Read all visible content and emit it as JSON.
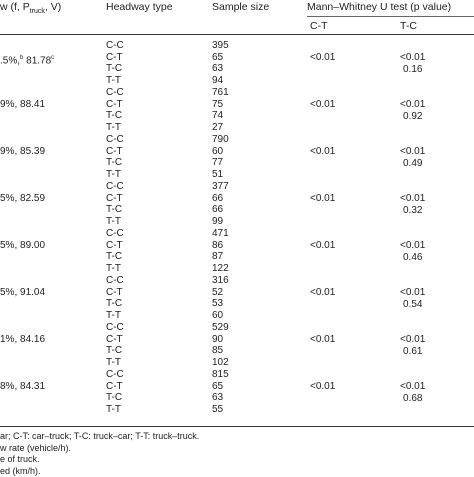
{
  "header": {
    "flow_label": "w (f, P",
    "flow_sub": "truck",
    "flow_tail": ", V)",
    "headway_type": "Headway type",
    "sample_size": "Sample size",
    "mw_test": "Mann–Whitney U test (p value)",
    "ct": "C-T",
    "tc": "T-C"
  },
  "groups": [
    {
      "flow_pre": ".5%,",
      "flow_sup1": "b",
      "flow_mid": " 81.78",
      "flow_sup2": "c",
      "rows": [
        {
          "type": "C-C",
          "n": "395"
        },
        {
          "type": "C-T",
          "n": "65"
        },
        {
          "type": "T-C",
          "n": "63"
        },
        {
          "type": "T-T",
          "n": "94"
        }
      ],
      "p_ct": "<0.01",
      "p_tc": "<0.01",
      "p_tc2": "0.16"
    },
    {
      "flow_pre": "9%, 88.41",
      "flow_sup1": "",
      "flow_mid": "",
      "flow_sup2": "",
      "rows": [
        {
          "type": "C-C",
          "n": "761"
        },
        {
          "type": "C-T",
          "n": "75"
        },
        {
          "type": "T-C",
          "n": "74"
        },
        {
          "type": "T-T",
          "n": "27"
        }
      ],
      "p_ct": "<0.01",
      "p_tc": "<0.01",
      "p_tc2": "0.92"
    },
    {
      "flow_pre": "9%, 85.39",
      "flow_sup1": "",
      "flow_mid": "",
      "flow_sup2": "",
      "rows": [
        {
          "type": "C-C",
          "n": "790"
        },
        {
          "type": "C-T",
          "n": "60"
        },
        {
          "type": "T-C",
          "n": "77"
        },
        {
          "type": "T-T",
          "n": "51"
        }
      ],
      "p_ct": "<0.01",
      "p_tc": "<0.01",
      "p_tc2": "0.49"
    },
    {
      "flow_pre": "5%, 82.59",
      "flow_sup1": "",
      "flow_mid": "",
      "flow_sup2": "",
      "rows": [
        {
          "type": "C-C",
          "n": "377"
        },
        {
          "type": "C-T",
          "n": "66"
        },
        {
          "type": "T-C",
          "n": "66"
        },
        {
          "type": "T-T",
          "n": "99"
        }
      ],
      "p_ct": "<0.01",
      "p_tc": "<0.01",
      "p_tc2": "0.32"
    },
    {
      "flow_pre": "5%, 89.00",
      "flow_sup1": "",
      "flow_mid": "",
      "flow_sup2": "",
      "rows": [
        {
          "type": "C-C",
          "n": "471"
        },
        {
          "type": "C-T",
          "n": "86"
        },
        {
          "type": "T-C",
          "n": "87"
        },
        {
          "type": "T-T",
          "n": "122"
        }
      ],
      "p_ct": "<0.01",
      "p_tc": "<0.01",
      "p_tc2": "0.46"
    },
    {
      "flow_pre": "5%, 91.04",
      "flow_sup1": "",
      "flow_mid": "",
      "flow_sup2": "",
      "rows": [
        {
          "type": "C-C",
          "n": "316"
        },
        {
          "type": "C-T",
          "n": "52"
        },
        {
          "type": "T-C",
          "n": "53"
        },
        {
          "type": "T-T",
          "n": "60"
        }
      ],
      "p_ct": "<0.01",
      "p_tc": "<0.01",
      "p_tc2": "0.54"
    },
    {
      "flow_pre": "1%, 84.16",
      "flow_sup1": "",
      "flow_mid": "",
      "flow_sup2": "",
      "rows": [
        {
          "type": "C-C",
          "n": "529"
        },
        {
          "type": "C-T",
          "n": "90"
        },
        {
          "type": "T-C",
          "n": "85"
        },
        {
          "type": "T-T",
          "n": "102"
        }
      ],
      "p_ct": "<0.01",
      "p_tc": "<0.01",
      "p_tc2": "0.61"
    },
    {
      "flow_pre": "8%, 84.31",
      "flow_sup1": "",
      "flow_mid": "",
      "flow_sup2": "",
      "rows": [
        {
          "type": "C-C",
          "n": "815"
        },
        {
          "type": "C-T",
          "n": "65"
        },
        {
          "type": "T-C",
          "n": "63"
        },
        {
          "type": "T-T",
          "n": "55"
        }
      ],
      "p_ct": "<0.01",
      "p_tc": "<0.01",
      "p_tc2": "0.68"
    }
  ],
  "footnotes": [
    "ar; C-T: car–truck; T-C: truck–car; T-T: truck–truck.",
    "w rate (vehicle/h).",
    "e of truck.",
    "ed (km/h)."
  ]
}
